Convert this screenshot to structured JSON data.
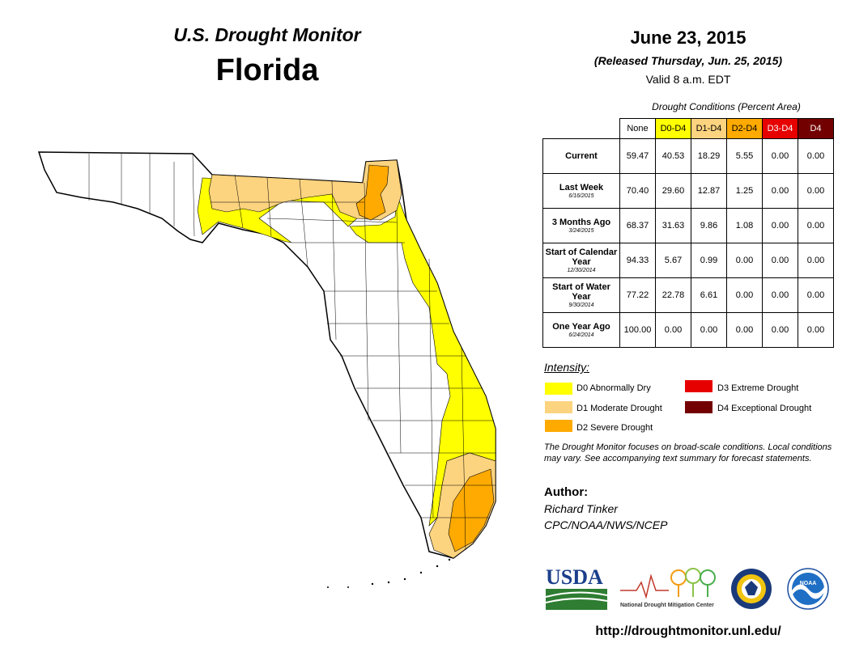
{
  "header": {
    "title": "U.S. Drought Monitor",
    "state": "Florida",
    "date": "June 23, 2015",
    "released": "(Released Thursday, Jun. 25, 2015)",
    "valid": "Valid 8 a.m. EDT"
  },
  "table": {
    "caption": "Drought Conditions (Percent Area)",
    "columns": [
      "None",
      "D0-D4",
      "D1-D4",
      "D2-D4",
      "D3-D4",
      "D4"
    ],
    "column_colors": [
      "#ffffff",
      "#ffff00",
      "#fcd37f",
      "#ffaa00",
      "#e60000",
      "#730000"
    ],
    "rows": [
      {
        "label": "Current",
        "sub": "",
        "values": [
          "59.47",
          "40.53",
          "18.29",
          "5.55",
          "0.00",
          "0.00"
        ]
      },
      {
        "label": "Last Week",
        "sub": "6/16/2015",
        "values": [
          "70.40",
          "29.60",
          "12.87",
          "1.25",
          "0.00",
          "0.00"
        ]
      },
      {
        "label": "3 Months Ago",
        "sub": "3/24/2015",
        "values": [
          "68.37",
          "31.63",
          "9.86",
          "1.08",
          "0.00",
          "0.00"
        ]
      },
      {
        "label": "Start of Calendar Year",
        "sub": "12/30/2014",
        "values": [
          "94.33",
          "5.67",
          "0.99",
          "0.00",
          "0.00",
          "0.00"
        ]
      },
      {
        "label": "Start of Water Year",
        "sub": "9/30/2014",
        "values": [
          "77.22",
          "22.78",
          "6.61",
          "0.00",
          "0.00",
          "0.00"
        ]
      },
      {
        "label": "One Year Ago",
        "sub": "6/24/2014",
        "values": [
          "100.00",
          "0.00",
          "0.00",
          "0.00",
          "0.00",
          "0.00"
        ]
      }
    ]
  },
  "legend": {
    "title": "Intensity:",
    "items": [
      {
        "label": "D0 Abnormally Dry",
        "color": "#ffff00"
      },
      {
        "label": "D1 Moderate Drought",
        "color": "#fcd37f"
      },
      {
        "label": "D2 Severe Drought",
        "color": "#ffaa00"
      },
      {
        "label": "D3 Extreme Drought",
        "color": "#e60000"
      },
      {
        "label": "D4 Exceptional Drought",
        "color": "#730000"
      }
    ]
  },
  "note": "The Drought Monitor focuses on broad-scale conditions. Local conditions may vary. See accompanying text summary for forecast statements.",
  "author": {
    "label": "Author:",
    "name": "Richard Tinker",
    "org": "CPC/NOAA/NWS/NCEP"
  },
  "logos": {
    "usda": "USDA",
    "ndmc": "National Drought Mitigation Center",
    "noaa": "NOAA"
  },
  "url": "http://droughtmonitor.unl.edu/"
}
